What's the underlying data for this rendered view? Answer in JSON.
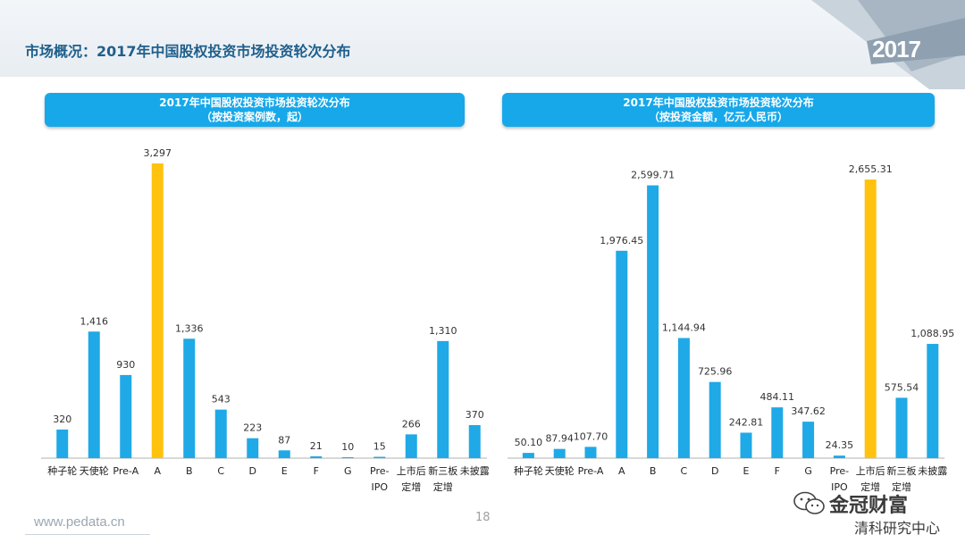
{
  "page": {
    "title": "市场概况：2017年中国股权投资市场投资轮次分布",
    "year_badge": "2017",
    "footer_url": "www.pedata.cn",
    "page_number": "18",
    "watermark_line1": "金冠财富",
    "watermark_line2": "清科研究中心"
  },
  "colors": {
    "bar": "#1fa9e6",
    "highlight": "#ffc20e",
    "header": "#17a8ea",
    "title": "#1f5f8b"
  },
  "chart_data": [
    {
      "type": "bar",
      "title": "2017年中国股权投资市场投资轮次分布",
      "subtitle": "（按投资案例数，起）",
      "categories": [
        "种子轮",
        "天使轮",
        "Pre-A",
        "A",
        "B",
        "C",
        "D",
        "E",
        "F",
        "G",
        "Pre-IPO",
        "上市后定增",
        "新三板定增",
        "未披露"
      ],
      "category_lines": [
        [
          "种子轮"
        ],
        [
          "天使轮"
        ],
        [
          "Pre-A"
        ],
        [
          "A"
        ],
        [
          "B"
        ],
        [
          "C"
        ],
        [
          "D"
        ],
        [
          "E"
        ],
        [
          "F"
        ],
        [
          "G"
        ],
        [
          "Pre-",
          "IPO"
        ],
        [
          "上市后",
          "定增"
        ],
        [
          "新三板",
          "定增"
        ],
        [
          "未披露"
        ]
      ],
      "values": [
        320,
        1416,
        930,
        3297,
        1336,
        543,
        223,
        87,
        21,
        10,
        15,
        266,
        1310,
        370
      ],
      "value_labels": [
        "320",
        "1,416",
        "930",
        "3,297",
        "1,336",
        "543",
        "223",
        "87",
        "21",
        "10",
        "15",
        "266",
        "1,310",
        "370"
      ],
      "highlight_index": 3,
      "ylim": [
        0,
        3297
      ]
    },
    {
      "type": "bar",
      "title": "2017年中国股权投资市场投资轮次分布",
      "subtitle": "（按投资金额，亿元人民币）",
      "categories": [
        "种子轮",
        "天使轮",
        "Pre-A",
        "A",
        "B",
        "C",
        "D",
        "E",
        "F",
        "G",
        "Pre-IPO",
        "上市后定增",
        "新三板定增",
        "未披露"
      ],
      "category_lines": [
        [
          "种子轮"
        ],
        [
          "天使轮"
        ],
        [
          "Pre-A"
        ],
        [
          "A"
        ],
        [
          "B"
        ],
        [
          "C"
        ],
        [
          "D"
        ],
        [
          "E"
        ],
        [
          "F"
        ],
        [
          "G"
        ],
        [
          "Pre-",
          "IPO"
        ],
        [
          "上市后",
          "定增"
        ],
        [
          "新三板",
          "定增"
        ],
        [
          "未披露"
        ]
      ],
      "values": [
        50.1,
        87.94,
        107.7,
        1976.45,
        2599.71,
        1144.94,
        725.96,
        242.81,
        484.11,
        347.62,
        24.35,
        2655.31,
        575.54,
        1088.95
      ],
      "value_labels": [
        "50.10",
        "87.94",
        "107.70",
        "1,976.45",
        "2,599.71",
        "1,144.94",
        "725.96",
        "242.81",
        "484.11",
        "347.62",
        "24.35",
        "2,655.31",
        "575.54",
        "1,088.95"
      ],
      "highlight_index": 11,
      "ylim": [
        0,
        2655.31
      ]
    }
  ]
}
